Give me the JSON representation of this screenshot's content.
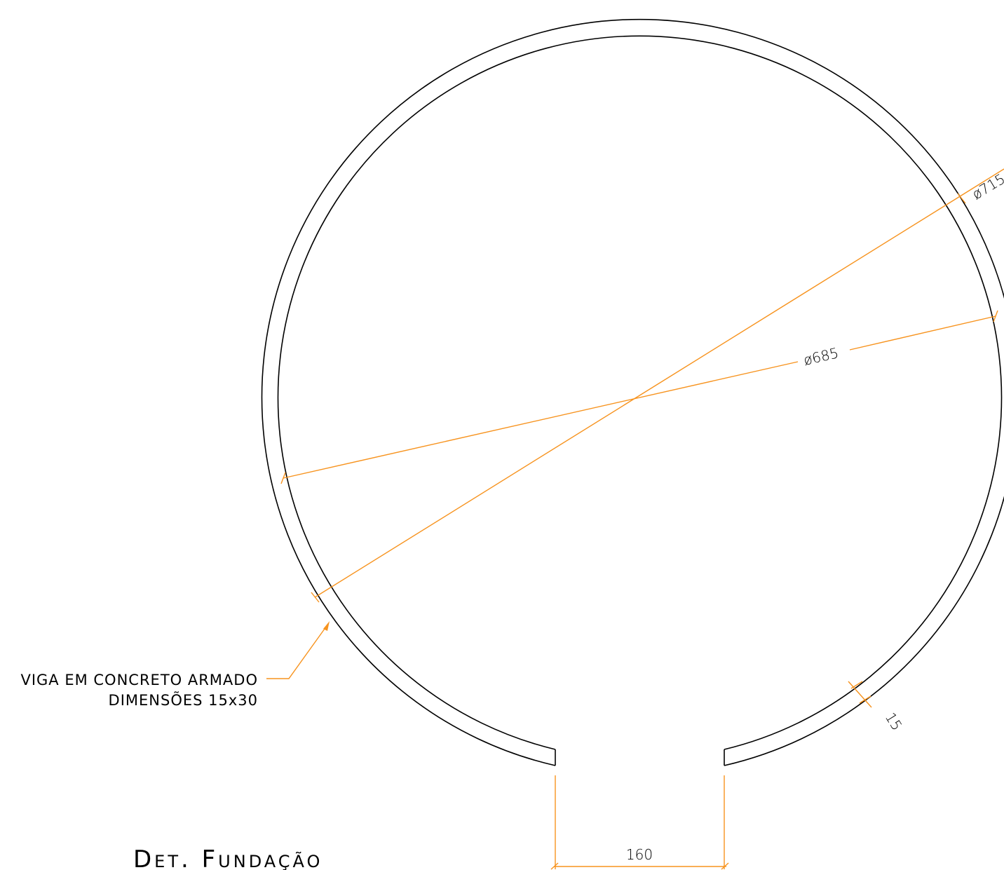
{
  "title": "Det. Fundação",
  "label": {
    "line1": "VIGA EM CONCRETO ARMADO",
    "line2": "DIMENSÕES 15x30"
  },
  "dimensions": {
    "outer_diameter": "ø715",
    "inner_diameter": "ø685",
    "wall_thickness": "15",
    "opening_width": "160"
  },
  "colors": {
    "outline": "#000000",
    "dimension": "#F7931E"
  }
}
